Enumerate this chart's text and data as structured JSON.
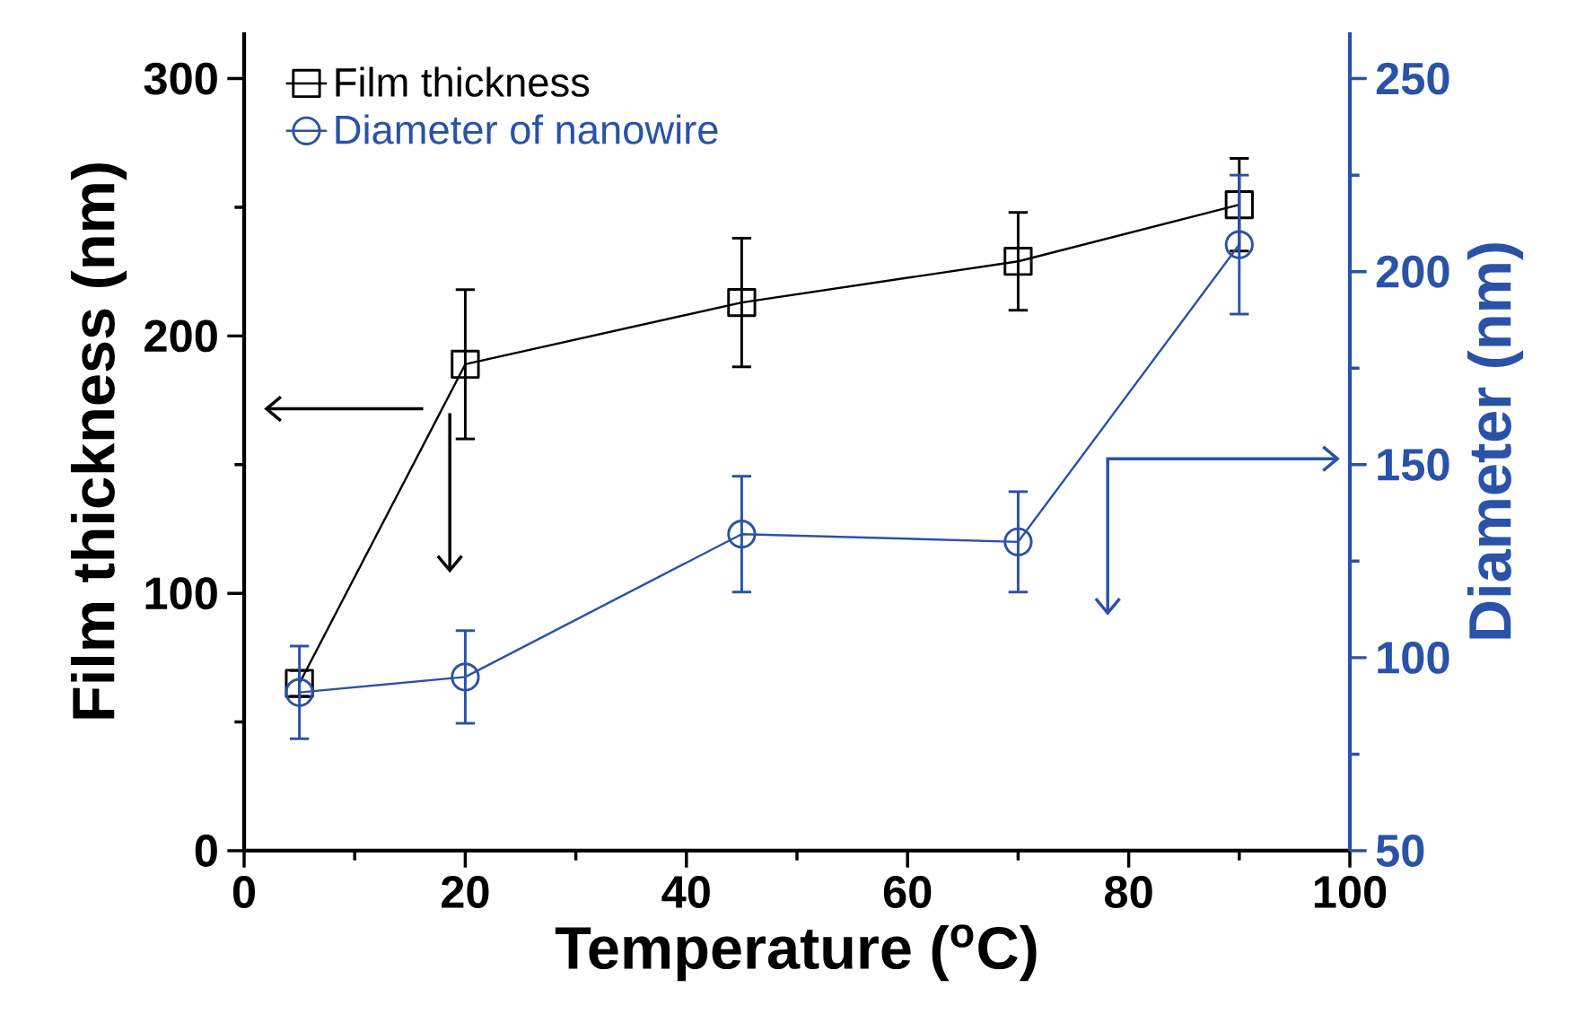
{
  "chart_data": {
    "type": "line",
    "xlabel": "Temperature ($^{o}$C)",
    "ylabel": "Film thickness (nm)",
    "y2label": "Diameter (nm)",
    "x": [
      5,
      20,
      45,
      70,
      90
    ],
    "xlim": [
      0,
      100
    ],
    "xticks": [
      0,
      20,
      40,
      60,
      80,
      100
    ],
    "ylim": [
      0,
      318
    ],
    "yticks": [
      0,
      100,
      200,
      300
    ],
    "y2lim": [
      50,
      262
    ],
    "y2ticks": [
      50,
      100,
      150,
      200,
      250
    ],
    "legend": "top left",
    "grid": false,
    "series": [
      {
        "name": "Film thickness",
        "color": "#000000",
        "marker": "square",
        "values": [
          65,
          189,
          213,
          229,
          251
        ],
        "errors": [
          5,
          29,
          25,
          19,
          18
        ]
      },
      {
        "name": "Diameter of nanowire",
        "color": "#2a52a8",
        "marker": "circle",
        "axis": "y2",
        "values": [
          91,
          95,
          132,
          130,
          207
        ],
        "errors": [
          12,
          12,
          15,
          13,
          18
        ]
      }
    ]
  }
}
